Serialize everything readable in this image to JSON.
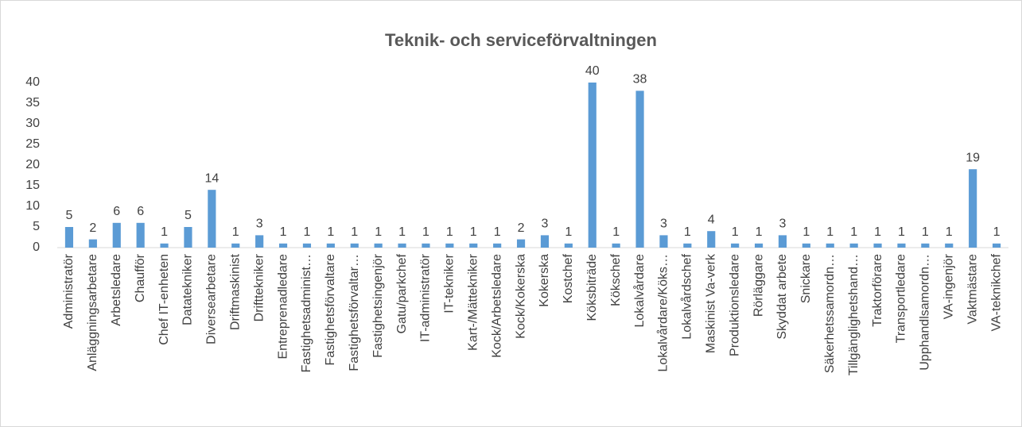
{
  "chart_data": {
    "type": "bar",
    "title": "Teknik- och serviceförvaltningen",
    "categories": [
      "Administratör",
      "Anläggningsarbetare",
      "Arbetsledare",
      "Chaufför",
      "Chef IT-enheten",
      "Datatekniker",
      "Diversearbetare",
      "Driftmaskinist",
      "Drifttekniker",
      "Entreprenadledare",
      "Fastighetsadminist…",
      "Fastighetsförvaltare",
      "Fastighetsförvaltar…",
      "Fastighetsingenjör",
      "Gatu/parkchef",
      "IT-administratör",
      "IT-tekniker",
      "Kart-/Mättekniker",
      "Kock/Arbetsledare",
      "Kock/Kokerska",
      "Kokerska",
      "Kostchef",
      "Köksbiträde",
      "Kökschef",
      "Lokalvårdare",
      "Lokalvårdare/Köks…",
      "Lokalvårdschef",
      "Maskinist Va-verk",
      "Produktionsledare",
      "Rörläggare",
      "Skyddat arbete",
      "Snickare",
      "Säkerhetssamordn…",
      "Tillgänglighetshand…",
      "Traktorförare",
      "Transportledare",
      "Upphandlsamordn…",
      "VA-ingenjör",
      "Vaktmästare",
      "VA-teknikchef"
    ],
    "values": [
      5,
      2,
      6,
      6,
      1,
      5,
      14,
      1,
      3,
      1,
      1,
      1,
      1,
      1,
      1,
      1,
      1,
      1,
      1,
      2,
      3,
      1,
      40,
      1,
      38,
      3,
      1,
      4,
      1,
      1,
      3,
      1,
      1,
      1,
      1,
      1,
      1,
      1,
      19,
      1
    ],
    "color": "#5b9bd5",
    "ylim": [
      0,
      40
    ],
    "yticks": [
      0,
      5,
      10,
      15,
      20,
      25,
      30,
      35,
      40
    ],
    "grid": false
  }
}
